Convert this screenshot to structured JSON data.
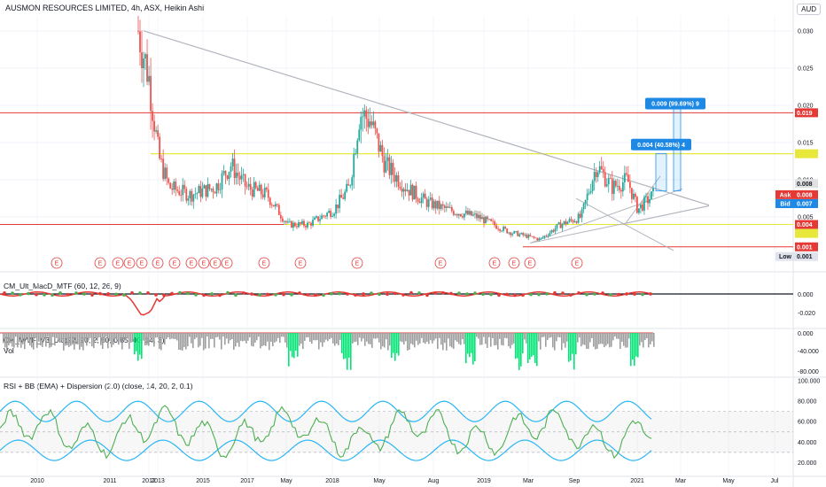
{
  "header": {
    "title": "AUSMON RESOURCES LIMITED, 4h, ASX, Heikin Ashi",
    "currency": "AUD"
  },
  "indicators": {
    "macd": "CM_Ult_MacD_MTF (60, 12, 26, 9)",
    "wvf": "CM_WVF_V3_Ult (22, 20, 2, 50, 0.85, 40, 14, 3)",
    "vol": "Vol",
    "rsi": "RSI + BB (EMA) + Dispersion (2.0) (close, 14, 20, 2, 0.1)"
  },
  "chart_data": {
    "type": "candlestick",
    "x_tick_labels": [
      "2010",
      "2011",
      "2012",
      "2013",
      "2015",
      "2017",
      "May",
      "2018",
      "May",
      "Aug",
      "2019",
      "Mar",
      "Sep",
      "2021",
      "Mar",
      "May",
      "Jul"
    ],
    "y_ticks": [
      "0.030",
      "0.025",
      "0.020",
      "0.015",
      "0.010",
      "0.005"
    ],
    "price_tags": [
      {
        "label": "0.019",
        "color": "#e53935"
      },
      {
        "label": "0.008",
        "color": "#e0e0e0"
      },
      {
        "label": "Ask",
        "value": "0.008",
        "color": "#e53935"
      },
      {
        "label": "Bid",
        "value": "0.007",
        "color": "#1e88e5"
      },
      {
        "label": "0.004",
        "color": "#e53935"
      },
      {
        "label": "0.001",
        "color": "#e53935"
      },
      {
        "label": "Low",
        "value": "0.001",
        "color": "#e0e3eb"
      }
    ],
    "annotations": [
      "0.009 (99.69%) 9",
      "0.004 (40.58%) 4"
    ],
    "event_marker": "E",
    "series": [
      {
        "x": 0.0,
        "close": 0.03
      },
      {
        "x": 0.02,
        "close": 0.024
      },
      {
        "x": 0.04,
        "close": 0.013
      },
      {
        "x": 0.06,
        "close": 0.009
      },
      {
        "x": 0.1,
        "close": 0.008
      },
      {
        "x": 0.15,
        "close": 0.009
      },
      {
        "x": 0.18,
        "close": 0.012
      },
      {
        "x": 0.21,
        "close": 0.009
      },
      {
        "x": 0.25,
        "close": 0.008
      },
      {
        "x": 0.29,
        "close": 0.004
      },
      {
        "x": 0.33,
        "close": 0.004
      },
      {
        "x": 0.38,
        "close": 0.006
      },
      {
        "x": 0.41,
        "close": 0.009
      },
      {
        "x": 0.43,
        "close": 0.019
      },
      {
        "x": 0.45,
        "close": 0.018
      },
      {
        "x": 0.48,
        "close": 0.012
      },
      {
        "x": 0.52,
        "close": 0.009
      },
      {
        "x": 0.56,
        "close": 0.007
      },
      {
        "x": 0.6,
        "close": 0.006
      },
      {
        "x": 0.66,
        "close": 0.005
      },
      {
        "x": 0.72,
        "close": 0.003
      },
      {
        "x": 0.78,
        "close": 0.002
      },
      {
        "x": 0.82,
        "close": 0.004
      },
      {
        "x": 0.86,
        "close": 0.005
      },
      {
        "x": 0.89,
        "close": 0.012
      },
      {
        "x": 0.92,
        "close": 0.009
      },
      {
        "x": 0.95,
        "close": 0.01
      },
      {
        "x": 0.97,
        "close": 0.006
      },
      {
        "x": 1.0,
        "close": 0.008
      }
    ],
    "panels": {
      "macd": {
        "y_ticks": [
          "0.000",
          "-0.020"
        ]
      },
      "wvf": {
        "y_ticks": [
          "0.000",
          "-40.000",
          "-80.000"
        ]
      },
      "rsi": {
        "y_ticks": [
          "100.000",
          "80.000",
          "60.000",
          "40.000",
          "20.000"
        ]
      }
    }
  }
}
